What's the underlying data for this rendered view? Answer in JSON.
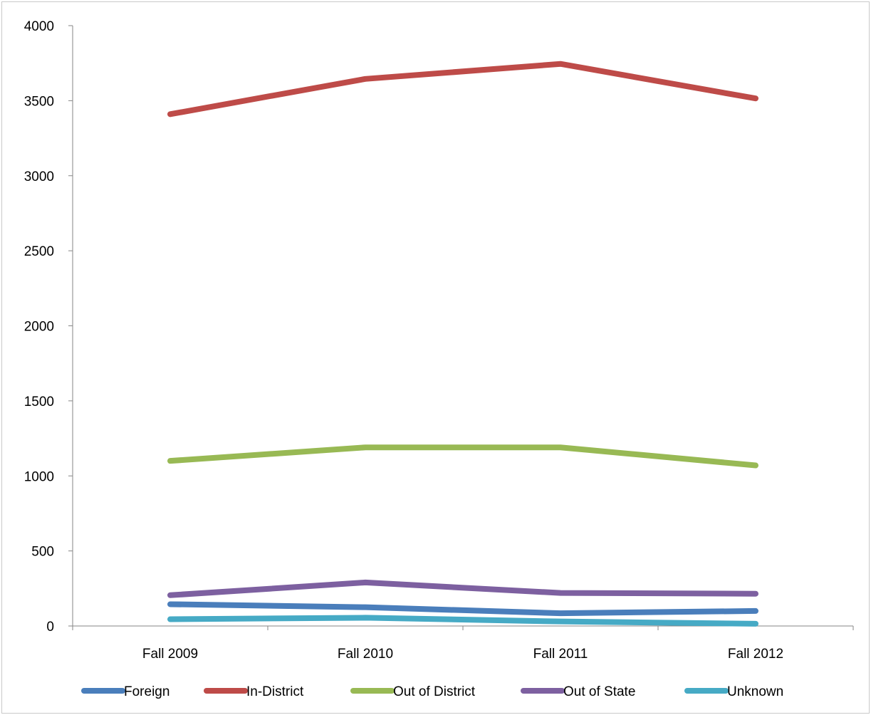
{
  "chart_data": {
    "type": "line",
    "title": "",
    "xlabel": "",
    "ylabel": "",
    "categories": [
      "Fall 2009",
      "Fall 2010",
      "Fall 2011",
      "Fall 2012"
    ],
    "ylim": [
      0,
      4000
    ],
    "yticks": [
      0,
      500,
      1000,
      1500,
      2000,
      2500,
      3000,
      3500,
      4000
    ],
    "grid": false,
    "legend_position": "bottom",
    "series": [
      {
        "name": "Foreign",
        "color": "#4a7ebb",
        "values": [
          145,
          125,
          85,
          100
        ]
      },
      {
        "name": "In-District",
        "color": "#be4b48",
        "values": [
          3410,
          3645,
          3745,
          3515
        ]
      },
      {
        "name": "Out of District",
        "color": "#98b954",
        "values": [
          1100,
          1190,
          1190,
          1070
        ]
      },
      {
        "name": "Out of State",
        "color": "#7d60a0",
        "values": [
          205,
          290,
          220,
          215
        ]
      },
      {
        "name": "Unknown",
        "color": "#46aac5",
        "values": [
          45,
          55,
          30,
          15
        ]
      }
    ]
  }
}
